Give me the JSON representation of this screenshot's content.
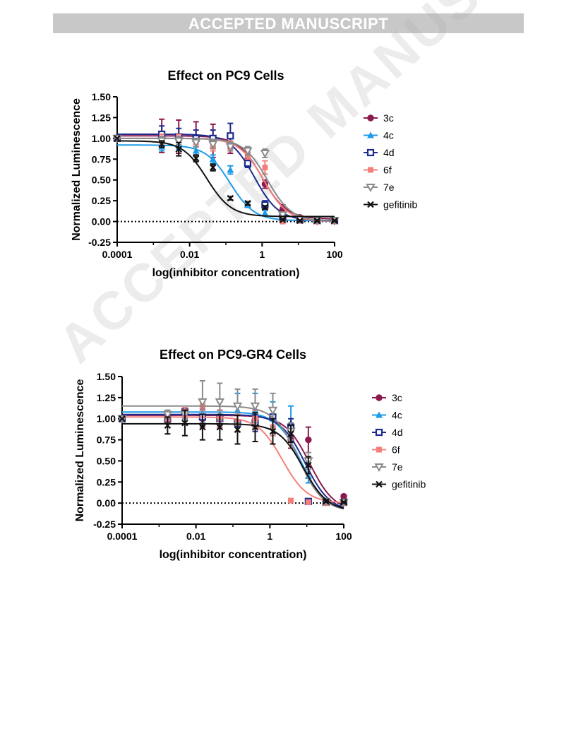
{
  "header": {
    "banner": "ACCEPTED MANUSCRIPT",
    "watermark": "ACCEPTED MANUSCRIPT"
  },
  "chart_data": [
    {
      "type": "line",
      "title": "Effect on PC9 Cells",
      "xlabel": "log(inhibitor concentration)",
      "ylabel": "Normalized Luminescence",
      "x_scale": "log",
      "xlim": [
        0.0001,
        100
      ],
      "ylim": [
        -0.25,
        1.5
      ],
      "xticks": [
        "0.0001",
        "0.01",
        "1",
        "100"
      ],
      "yticks": [
        "1.50",
        "1.25",
        "1.00",
        "0.75",
        "0.50",
        "0.25",
        "0.00",
        "-0.25"
      ],
      "x": [
        0.0001,
        0.0017,
        0.005,
        0.015,
        0.044,
        0.133,
        0.4,
        1.2,
        3.7,
        11,
        33,
        100
      ],
      "grid": false,
      "legend": "right",
      "baseline": 0,
      "series": [
        {
          "name": "3c",
          "color": "#8b1a4f",
          "marker": "circle",
          "top": 1.03,
          "bottom": 0.03,
          "ec50": 1.0,
          "values": [
            1.0,
            1.03,
            1.02,
            1.0,
            0.97,
            0.92,
            0.75,
            0.45,
            0.15,
            0.05,
            0.02,
            0.01
          ],
          "errors": [
            0,
            0.2,
            0.2,
            0.2,
            0.2,
            0.1,
            0.08,
            0.05,
            0.05,
            0.02,
            0.01,
            0.01
          ]
        },
        {
          "name": "4c",
          "color": "#1e9be8",
          "marker": "triangle",
          "top": 0.92,
          "bottom": 0.01,
          "ec50": 0.13,
          "values": [
            1.0,
            0.9,
            0.92,
            0.85,
            0.75,
            0.62,
            0.2,
            0.1,
            0.02,
            0.01,
            0.01,
            0.01
          ],
          "errors": [
            0,
            0.05,
            0.05,
            0.05,
            0.05,
            0.05,
            0.03,
            0.03,
            0.01,
            0.01,
            0.01,
            0.01
          ]
        },
        {
          "name": "4d",
          "color": "#1c2a8c",
          "marker": "square",
          "top": 1.05,
          "bottom": 0.01,
          "ec50": 0.62,
          "values": [
            1.0,
            1.05,
            1.02,
            1.0,
            1.0,
            1.03,
            0.7,
            0.2,
            0.05,
            0.02,
            0.01,
            0.01
          ],
          "errors": [
            0,
            0.1,
            0.1,
            0.1,
            0.1,
            0.15,
            0.05,
            0.05,
            0.02,
            0.01,
            0.01,
            0.01
          ]
        },
        {
          "name": "6f",
          "color": "#f4807b",
          "marker": "square-filled",
          "top": 1.0,
          "bottom": 0.0,
          "ec50": 1.1,
          "values": [
            1.0,
            1.0,
            1.0,
            0.95,
            0.9,
            0.92,
            0.8,
            0.65,
            0.0,
            0.01,
            0.0,
            0.0
          ],
          "errors": [
            0,
            0.05,
            0.05,
            0.05,
            0.05,
            0.05,
            0.05,
            0.08,
            0.01,
            0.01,
            0.0,
            0.0
          ]
        },
        {
          "name": "7e",
          "color": "#8a8a8a",
          "marker": "triangle-down",
          "top": 1.0,
          "bottom": 0.0,
          "ec50": 1.4,
          "values": [
            1.0,
            0.97,
            0.97,
            0.95,
            0.93,
            0.9,
            0.85,
            0.82,
            0.08,
            0.03,
            0.01,
            0.01
          ],
          "errors": [
            0,
            0.05,
            0.05,
            0.05,
            0.05,
            0.05,
            0.05,
            0.05,
            0.02,
            0.01,
            0.01,
            0.01
          ]
        },
        {
          "name": "gefitinib",
          "color": "#111111",
          "marker": "x",
          "top": 0.97,
          "bottom": 0.06,
          "ec50": 0.03,
          "values": [
            1.0,
            0.93,
            0.87,
            0.76,
            0.65,
            0.28,
            0.22,
            0.17,
            0.02,
            0.01,
            0.01,
            0.01
          ],
          "errors": [
            0,
            0.04,
            0.08,
            0.04,
            0.04,
            0.02,
            0.02,
            0.02,
            0.01,
            0.01,
            0.01,
            0.01
          ]
        }
      ]
    },
    {
      "type": "line",
      "title": "Effect on PC9-GR4 Cells",
      "xlabel": "log(inhibitor concentration)",
      "ylabel": "Normalized Luminescence",
      "x_scale": "log",
      "xlim": [
        0.0001,
        100
      ],
      "ylim": [
        -0.25,
        1.5
      ],
      "xticks": [
        "0.0001",
        "0.01",
        "1",
        "100"
      ],
      "yticks": [
        "1.50",
        "1.25",
        "1.00",
        "0.75",
        "0.50",
        "0.25",
        "0.00",
        "-0.25"
      ],
      "x": [
        0.0001,
        0.0017,
        0.005,
        0.015,
        0.044,
        0.133,
        0.4,
        1.2,
        3.7,
        11,
        33,
        100
      ],
      "grid": false,
      "legend": "right",
      "baseline": 0,
      "series": [
        {
          "name": "3c",
          "color": "#8b1a4f",
          "marker": "circle",
          "top": 1.04,
          "bottom": -0.1,
          "ec50": 12,
          "values": [
            1.0,
            1.0,
            1.05,
            1.0,
            1.0,
            0.95,
            1.0,
            1.02,
            0.75,
            0.75,
            0.02,
            0.08
          ],
          "errors": [
            0,
            0.05,
            0.05,
            0.1,
            0.1,
            0.1,
            0.1,
            0.1,
            0.1,
            0.15,
            0.02,
            0.02
          ]
        },
        {
          "name": "4c",
          "color": "#1e9be8",
          "marker": "triangle",
          "top": 1.08,
          "bottom": -0.1,
          "ec50": 7,
          "values": [
            1.0,
            1.05,
            1.05,
            1.05,
            1.05,
            1.1,
            1.1,
            1.0,
            0.95,
            0.32,
            0.02,
            0.01
          ],
          "errors": [
            0,
            0.05,
            0.05,
            0.1,
            0.15,
            0.2,
            0.2,
            0.2,
            0.2,
            0.08,
            0.02,
            0.01
          ]
        },
        {
          "name": "4d",
          "color": "#1c2a8c",
          "marker": "square",
          "top": 1.05,
          "bottom": -0.1,
          "ec50": 9,
          "values": [
            1.0,
            1.0,
            1.08,
            1.02,
            1.0,
            0.95,
            0.95,
            1.02,
            0.9,
            0.02,
            0.01,
            0.01
          ],
          "errors": [
            0,
            0.05,
            0.05,
            0.1,
            0.1,
            0.1,
            0.1,
            0.1,
            0.1,
            0.02,
            0.01,
            0.01
          ]
        },
        {
          "name": "6f",
          "color": "#f4807b",
          "marker": "square-filled",
          "top": 1.02,
          "bottom": 0.0,
          "ec50": 2.2,
          "values": [
            1.0,
            1.0,
            1.08,
            1.15,
            1.0,
            0.95,
            1.0,
            0.9,
            0.03,
            0.01,
            0.0,
            0.0
          ],
          "errors": [
            0,
            0.05,
            0.05,
            0.05,
            0.1,
            0.1,
            0.1,
            0.1,
            0.01,
            0.01,
            0.0,
            0.0
          ]
        },
        {
          "name": "7e",
          "color": "#8a8a8a",
          "marker": "triangle-down",
          "top": 1.15,
          "bottom": -0.1,
          "ec50": 6,
          "values": [
            1.0,
            1.05,
            1.05,
            1.2,
            1.2,
            1.15,
            1.15,
            1.1,
            0.85,
            0.5,
            0.02,
            0.01
          ],
          "errors": [
            0,
            0.05,
            0.05,
            0.25,
            0.22,
            0.2,
            0.2,
            0.2,
            0.1,
            0.1,
            0.02,
            0.01
          ]
        },
        {
          "name": "gefitinib",
          "color": "#111111",
          "marker": "x",
          "top": 0.94,
          "bottom": -0.1,
          "ec50": 8,
          "values": [
            1.0,
            0.92,
            0.95,
            0.9,
            0.9,
            0.87,
            0.9,
            0.85,
            0.82,
            0.45,
            0.02,
            0.01
          ],
          "errors": [
            0,
            0.1,
            0.15,
            0.15,
            0.15,
            0.17,
            0.17,
            0.15,
            0.1,
            0.1,
            0.01,
            0.01
          ]
        }
      ]
    }
  ]
}
